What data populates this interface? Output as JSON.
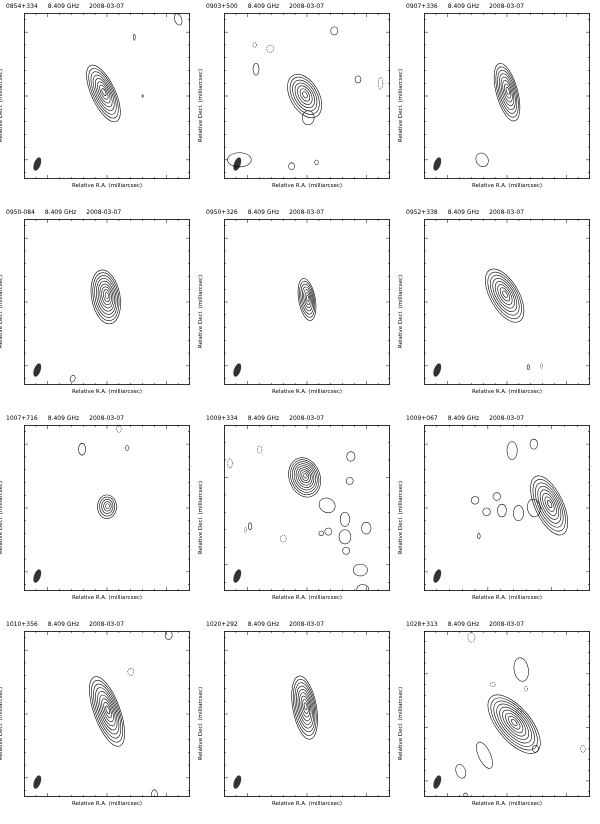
{
  "figure": {
    "xlabel": "Relative R.A. (milliarcsec)",
    "ylabel": "Relative Decl. (milliarcsec)",
    "frequency": "8.409 GHz",
    "date": "2008-03-07"
  },
  "chart_data": [
    {
      "type": "contour",
      "source": "0854+334",
      "freq": "8.409 GHz",
      "date": "2008-03-07",
      "xlim": [
        7,
        -7
      ],
      "ylim": [
        -6.5,
        6.5
      ],
      "xticks": [
        "5",
        "0",
        "-5"
      ],
      "yticks": [
        "5",
        "0",
        "-5"
      ]
    },
    {
      "type": "contour",
      "source": "0903+500",
      "freq": "8.409 GHz",
      "date": "2008-03-07",
      "xlim": [
        7,
        -7
      ],
      "ylim": [
        -6.5,
        6.5
      ],
      "xticks": [
        "5",
        "0",
        "-5"
      ],
      "yticks": [
        "5",
        "0",
        "-5"
      ]
    },
    {
      "type": "contour",
      "source": "0907+336",
      "freq": "8.409 GHz",
      "date": "2008-03-07",
      "xlim": [
        7,
        -7
      ],
      "ylim": [
        -6.5,
        6.5
      ],
      "xticks": [
        "5",
        "0",
        "-5"
      ],
      "yticks": [
        "5",
        "0",
        "-5"
      ]
    },
    {
      "type": "contour",
      "source": "0950-084",
      "freq": "8.409 GHz",
      "date": "2008-03-07",
      "xlim": [
        7,
        -7
      ],
      "ylim": [
        -6.5,
        6.5
      ],
      "xticks": [
        "5",
        "0",
        "-5"
      ],
      "yticks": [
        "5",
        "0",
        "-5"
      ]
    },
    {
      "type": "contour",
      "source": "0950+326",
      "freq": "8.409 GHz",
      "date": "2008-03-07",
      "xlim": [
        7,
        -7
      ],
      "ylim": [
        -6.5,
        6.5
      ],
      "xticks": [
        "5",
        "0",
        "-5"
      ],
      "yticks": [
        "5",
        "0",
        "-5"
      ]
    },
    {
      "type": "contour",
      "source": "0952+338",
      "freq": "8.409 GHz",
      "date": "2008-03-07",
      "xlim": [
        7,
        -7
      ],
      "ylim": [
        -6.5,
        6.5
      ],
      "xticks": [
        "5",
        "0",
        "-5"
      ],
      "yticks": [
        "5",
        "0",
        "-5"
      ]
    },
    {
      "type": "contour",
      "source": "1007+716",
      "freq": "8.409 GHz",
      "date": "2008-03-07",
      "xlim": [
        7,
        -7
      ],
      "ylim": [
        -6.5,
        6.5
      ],
      "xticks": [
        "5",
        "0",
        "-5"
      ],
      "yticks": [
        "5",
        "0",
        "-5"
      ]
    },
    {
      "type": "contour",
      "source": "1009+334",
      "freq": "8.409 GHz",
      "date": "2008-03-07",
      "xlim": [
        7,
        -7
      ],
      "ylim": [
        -6.5,
        3
      ],
      "xticks": [
        "5",
        "0",
        "-5"
      ],
      "yticks": [
        "0",
        "-5"
      ]
    },
    {
      "type": "contour",
      "source": "1009+067",
      "freq": "8.409 GHz",
      "date": "2008-03-07",
      "xlim": [
        10,
        -3
      ],
      "ylim": [
        -6.5,
        6.5
      ],
      "xticks": [
        "5",
        "0"
      ],
      "yticks": [
        "5",
        "0",
        "-5"
      ]
    },
    {
      "type": "contour",
      "source": "1010+356",
      "freq": "8.409 GHz",
      "date": "2008-03-07",
      "xlim": [
        7,
        -7
      ],
      "ylim": [
        -6.5,
        6.5
      ],
      "xticks": [
        "5",
        "0",
        "-5"
      ],
      "yticks": [
        "5",
        "0",
        "-5"
      ]
    },
    {
      "type": "contour",
      "source": "1020+292",
      "freq": "8.409 GHz",
      "date": "2008-03-07",
      "xlim": [
        7,
        -7
      ],
      "ylim": [
        -6.5,
        6.5
      ],
      "xticks": [
        "5",
        "0",
        "-5"
      ],
      "yticks": [
        "5",
        "0",
        "-5"
      ]
    },
    {
      "type": "contour",
      "source": "1028+313",
      "freq": "8.409 GHz",
      "date": "2008-03-07",
      "xlim": [
        7,
        -7
      ],
      "ylim": [
        -6.5,
        9
      ],
      "xticks": [
        "5",
        "0",
        "-5"
      ],
      "yticks": [
        "5",
        "0",
        "-5"
      ]
    }
  ]
}
